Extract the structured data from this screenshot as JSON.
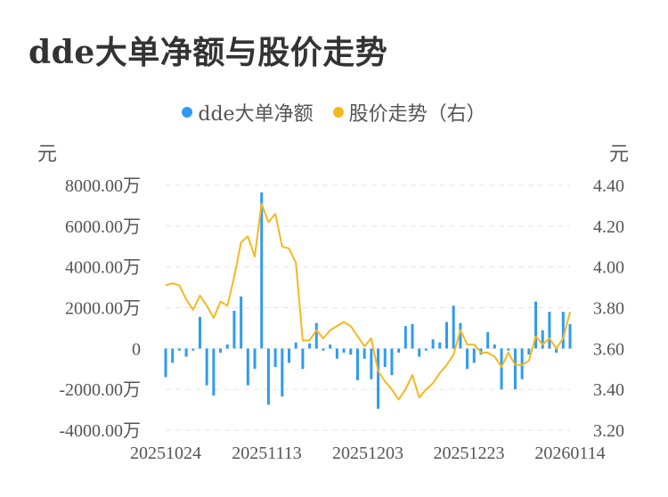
{
  "title": "dde大单净额与股价走势",
  "legend": [
    {
      "label": "dde大单净额",
      "color": "#2f9bf0"
    },
    {
      "label": "股价走势（右）",
      "color": "#f5b820"
    }
  ],
  "left_unit": "元",
  "right_unit": "元",
  "chart_data": {
    "type": "bar+line",
    "left_axis": {
      "ticks": [
        "8000.00万",
        "6000.00万",
        "4000.00万",
        "2000.00万",
        "0",
        "-2000.00万",
        "-4000.00万"
      ],
      "ylim": [
        -4000,
        8000
      ]
    },
    "right_axis": {
      "ticks": [
        "4.40",
        "4.20",
        "4.00",
        "3.80",
        "3.60",
        "3.40",
        "3.20"
      ],
      "ylim": [
        3.2,
        4.4
      ]
    },
    "x_ticks": [
      "20251024",
      "20251113",
      "20251203",
      "20251223",
      "20260114"
    ],
    "series": [
      {
        "name": "dde大单净额",
        "type": "bar",
        "color": "#2f9bf0",
        "values": [
          -1400,
          -700,
          -100,
          -400,
          -100,
          1550,
          -1800,
          -2300,
          -200,
          200,
          1850,
          2550,
          -1800,
          -1000,
          7650,
          -2750,
          -900,
          -2350,
          -700,
          300,
          -1000,
          250,
          1250,
          -100,
          200,
          -500,
          -200,
          -300,
          -1550,
          -500,
          -1500,
          -2950,
          -900,
          -1300,
          -200,
          1100,
          1200,
          -400,
          -100,
          450,
          300,
          1300,
          2100,
          1250,
          -1000,
          -700,
          -300,
          800,
          200,
          -2000,
          -100,
          -2000,
          -1500,
          -300,
          2300,
          900,
          1800,
          -200,
          1800,
          1200
        ]
      },
      {
        "name": "股价走势（右）",
        "type": "line",
        "color": "#f5b820",
        "values": [
          3.91,
          3.92,
          3.91,
          3.84,
          3.79,
          3.86,
          3.81,
          3.75,
          3.83,
          3.81,
          3.95,
          4.12,
          4.15,
          4.05,
          4.31,
          4.22,
          4.26,
          4.1,
          4.09,
          4.02,
          3.64,
          3.64,
          3.69,
          3.65,
          3.69,
          3.71,
          3.73,
          3.71,
          3.66,
          3.61,
          3.65,
          3.49,
          3.44,
          3.4,
          3.35,
          3.4,
          3.47,
          3.36,
          3.4,
          3.43,
          3.48,
          3.52,
          3.57,
          3.69,
          3.62,
          3.62,
          3.58,
          3.58,
          3.56,
          3.51,
          3.58,
          3.52,
          3.52,
          3.54,
          3.66,
          3.62,
          3.65,
          3.6,
          3.65,
          3.78
        ]
      }
    ]
  }
}
